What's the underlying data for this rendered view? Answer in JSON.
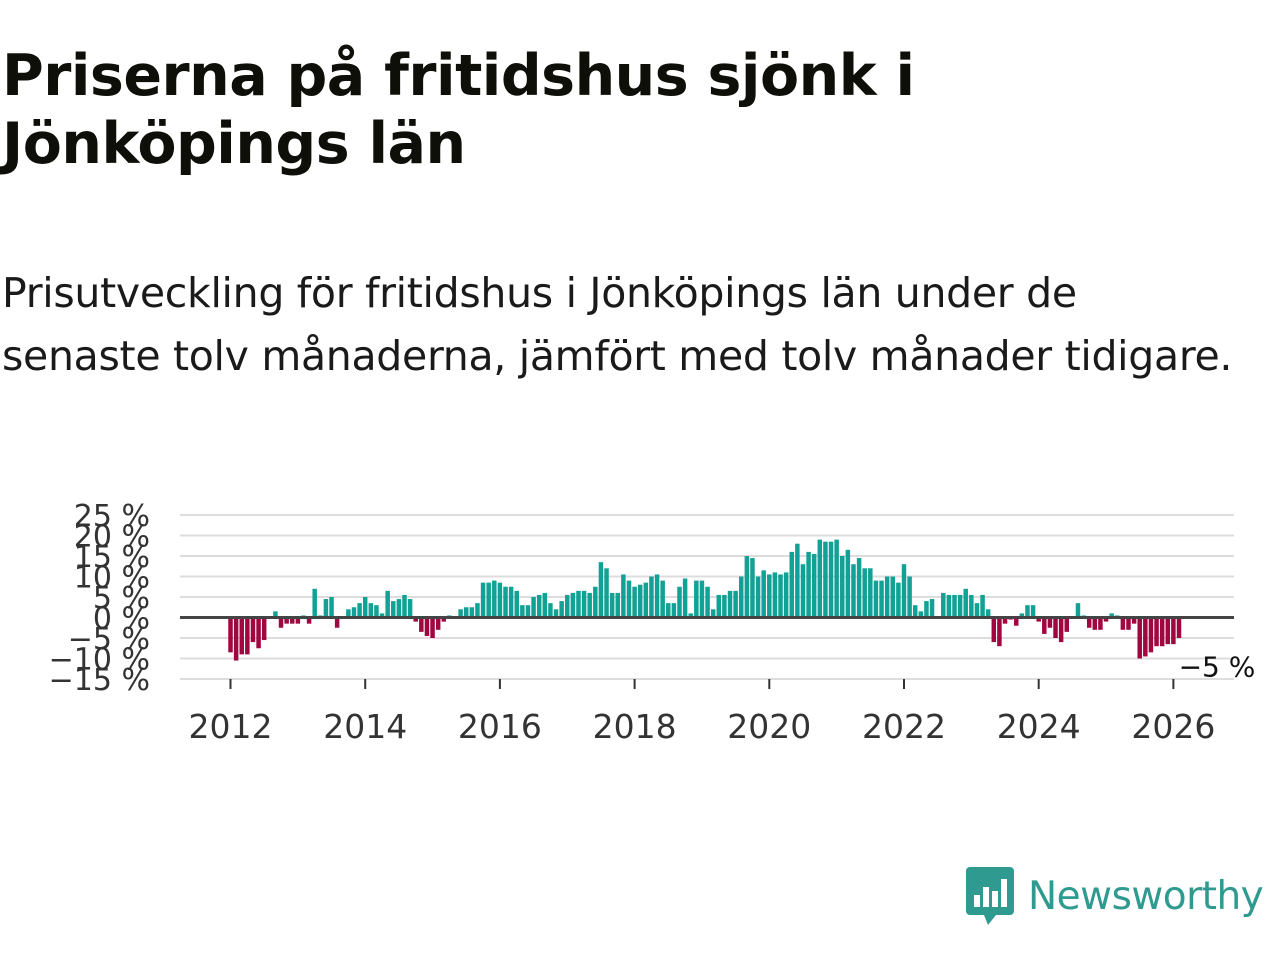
{
  "title": "Priserna på fritidshus sjönk i Jönköpings län",
  "subtitle": "Prisutveckling för fritidshus i Jönköpings län under de senaste tolv månaderna, jämfört med tolv månader tidigare.",
  "logo": {
    "text": "Newsworthy",
    "color": "#2f9a8f",
    "icon": "bar-chart-speech-bubble-icon"
  },
  "chart_data": {
    "type": "bar",
    "title": "Priserna på fritidshus sjönk i Jönköpings län",
    "xlabel": "",
    "ylabel": "",
    "ylim": [
      -15,
      25
    ],
    "xlim": [
      2011.25,
      2026.9
    ],
    "grid": true,
    "yticks": [
      25,
      20,
      15,
      10,
      5,
      0,
      -5,
      -10,
      -15
    ],
    "ytick_labels": [
      "25 %",
      "20 %",
      "15 %",
      "10 %",
      "5 %",
      "0 %",
      "−5 %",
      "−10 %",
      "−15 %"
    ],
    "xticks": [
      2012,
      2014,
      2016,
      2018,
      2020,
      2022,
      2024,
      2026
    ],
    "xtick_labels": [
      "2012",
      "2014",
      "2016",
      "2018",
      "2020",
      "2022",
      "2024",
      "2026"
    ],
    "positive_color": "#12a195",
    "negative_color": "#a0063f",
    "start": "2012-01",
    "frequency": "monthly",
    "last_value_label": "−5 %",
    "values": [
      -8.5,
      -10.5,
      -9,
      -9,
      -6,
      -7.5,
      -5.5,
      0,
      1.5,
      -2.5,
      -1.5,
      -1.5,
      -1.5,
      0.5,
      -1.5,
      7,
      0.5,
      4.5,
      5,
      -2.5,
      0,
      2,
      2.5,
      3.5,
      5,
      3.5,
      3,
      1,
      6.5,
      4,
      4.5,
      5.5,
      4.5,
      -1,
      -3.5,
      -4.5,
      -5,
      -3,
      -1,
      0.5,
      0,
      2,
      2.5,
      2.5,
      3.5,
      8.5,
      8.5,
      9,
      8.5,
      7.5,
      7.5,
      6.5,
      3,
      3,
      5,
      5.5,
      6,
      3.5,
      2,
      4,
      5.5,
      6,
      6.5,
      6.5,
      6,
      7.5,
      13.5,
      12,
      6,
      6,
      10.5,
      9,
      7.5,
      8,
      8.5,
      10,
      10.5,
      9,
      3.5,
      3.5,
      7.5,
      9.5,
      1,
      9,
      9,
      7.5,
      2,
      5.5,
      5.5,
      6.5,
      6.5,
      10,
      15,
      14.5,
      10,
      11.5,
      10.5,
      11,
      10.5,
      11,
      16,
      18,
      13,
      16,
      15.5,
      19,
      18.5,
      18.5,
      19,
      15,
      16.5,
      13,
      14.5,
      12,
      12,
      9,
      9,
      10,
      10,
      8.5,
      13,
      10,
      3,
      1.5,
      4,
      4.5,
      0,
      6,
      5.5,
      5.5,
      5.5,
      7,
      5.5,
      3.5,
      5.5,
      2,
      -6,
      -7,
      -1.5,
      -0.5,
      -2,
      1,
      3,
      3,
      -1,
      -4,
      -2.5,
      -5,
      -6,
      -3.5,
      0,
      3.5,
      0.5,
      -2.5,
      -3,
      -3,
      -1,
      1,
      0.5,
      -3,
      -3,
      -1.5,
      -10,
      -9.5,
      -8.5,
      -7,
      -7,
      -6.5,
      -6.5,
      -5
    ]
  }
}
